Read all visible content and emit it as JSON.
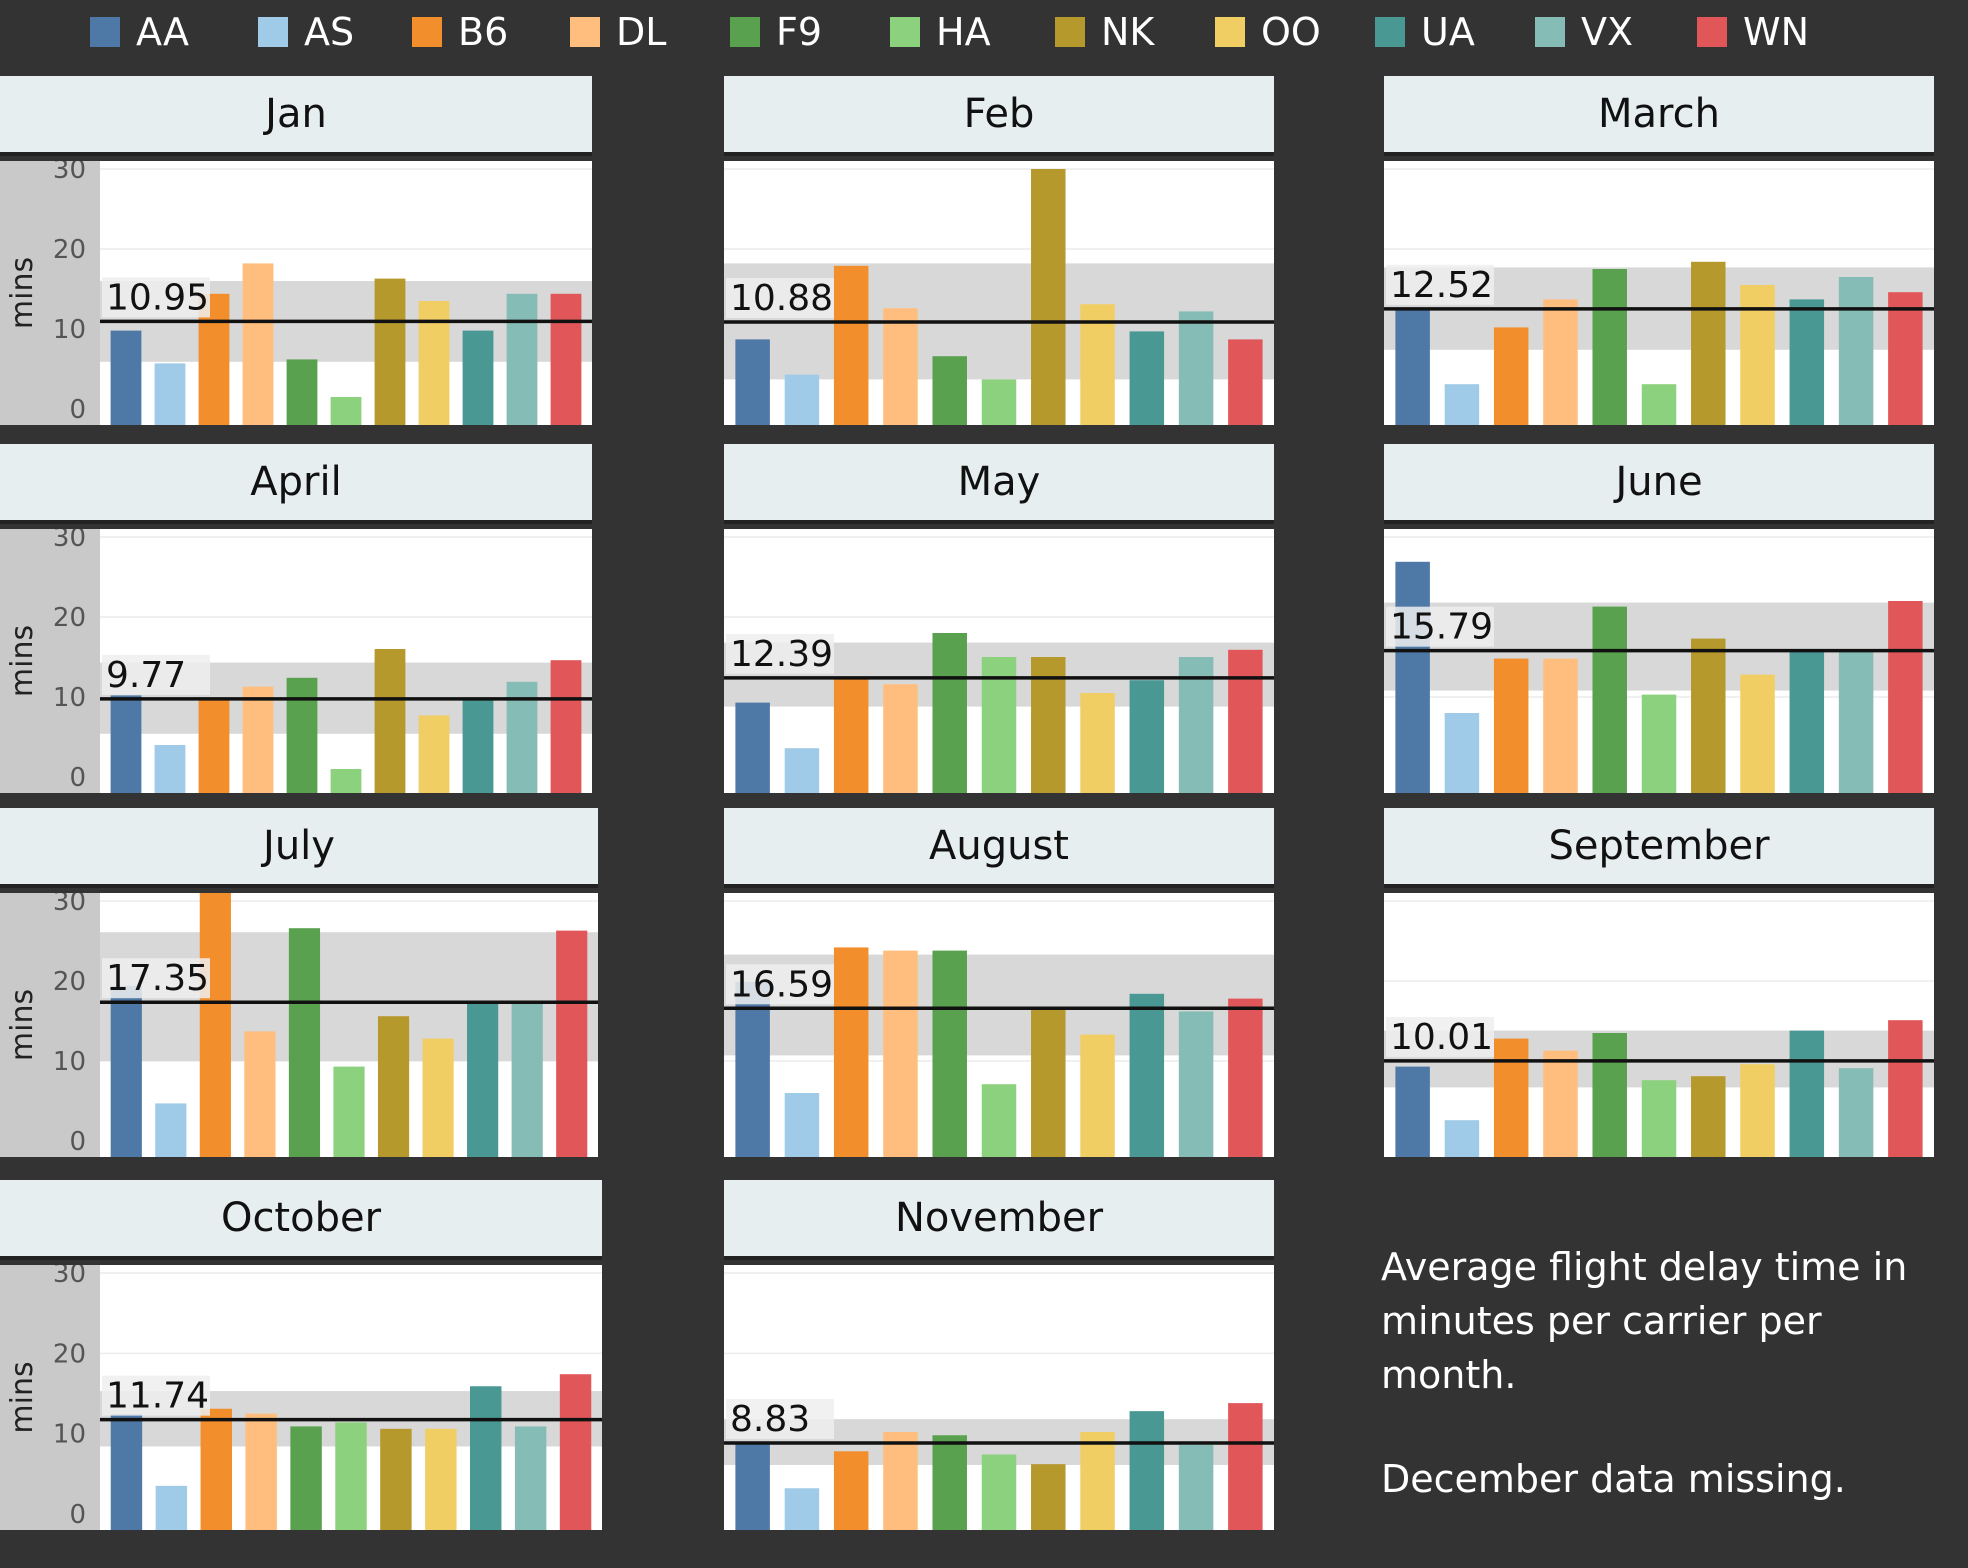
{
  "legend": [
    {
      "code": "AA",
      "color": "#4e79a7"
    },
    {
      "code": "AS",
      "color": "#a0cbe8"
    },
    {
      "code": "B6",
      "color": "#f28e2b"
    },
    {
      "code": "DL",
      "color": "#ffbe7d"
    },
    {
      "code": "F9",
      "color": "#59a14f"
    },
    {
      "code": "HA",
      "color": "#8cd17d"
    },
    {
      "code": "NK",
      "color": "#b6992d"
    },
    {
      "code": "OO",
      "color": "#f1ce63"
    },
    {
      "code": "UA",
      "color": "#499894"
    },
    {
      "code": "VX",
      "color": "#86bcb6"
    },
    {
      "code": "WN",
      "color": "#e15759"
    }
  ],
  "note": {
    "line1": "Average flight delay time in minutes per carrier per month.",
    "line2": "December data missing."
  },
  "chart_data": [
    {
      "type": "bar",
      "title": "Jan",
      "ylabel": "mins",
      "yticks": [
        0,
        10,
        20,
        30
      ],
      "ylim": [
        -2,
        31
      ],
      "categories": [
        "AA",
        "AS",
        "B6",
        "DL",
        "F9",
        "HA",
        "NK",
        "OO",
        "UA",
        "VX",
        "WN"
      ],
      "values": [
        9.8,
        5.7,
        14.4,
        18.2,
        6.2,
        1.5,
        16.3,
        13.5,
        9.8,
        14.4,
        14.4
      ],
      "average": 10.95,
      "average_label": "10.95",
      "band": [
        5.9,
        16.0
      ]
    },
    {
      "type": "bar",
      "title": "Feb",
      "ylabel": "mins",
      "yticks": [
        0,
        10,
        20,
        30
      ],
      "ylim": [
        -2,
        31
      ],
      "categories": [
        "AA",
        "AS",
        "B6",
        "DL",
        "F9",
        "HA",
        "NK",
        "OO",
        "UA",
        "VX",
        "WN"
      ],
      "values": [
        8.7,
        4.3,
        17.9,
        12.6,
        6.6,
        3.7,
        30.0,
        13.1,
        9.7,
        12.2,
        8.7
      ],
      "average": 10.88,
      "average_label": "10.88",
      "band": [
        3.7,
        18.2
      ]
    },
    {
      "type": "bar",
      "title": "March",
      "ylabel": "mins",
      "yticks": [
        0,
        10,
        20,
        30
      ],
      "ylim": [
        -2,
        31
      ],
      "categories": [
        "AA",
        "AS",
        "B6",
        "DL",
        "F9",
        "HA",
        "NK",
        "OO",
        "UA",
        "VX",
        "WN"
      ],
      "values": [
        12.5,
        3.1,
        10.2,
        13.7,
        17.5,
        3.1,
        18.4,
        15.5,
        13.7,
        16.5,
        14.6
      ],
      "average": 12.52,
      "average_label": "12.52",
      "band": [
        7.4,
        17.7
      ]
    },
    {
      "type": "bar",
      "title": "April",
      "ylabel": "mins",
      "yticks": [
        0,
        10,
        20,
        30
      ],
      "ylim": [
        -2,
        31
      ],
      "categories": [
        "AA",
        "AS",
        "B6",
        "DL",
        "F9",
        "HA",
        "NK",
        "OO",
        "UA",
        "VX",
        "WN"
      ],
      "values": [
        10.2,
        4.0,
        9.8,
        11.3,
        12.4,
        1.0,
        16.0,
        7.7,
        9.8,
        11.9,
        14.6
      ],
      "average": 9.77,
      "average_label": "9.77",
      "band": [
        5.4,
        14.3
      ]
    },
    {
      "type": "bar",
      "title": "May",
      "ylabel": "mins",
      "yticks": [
        0,
        10,
        20,
        30
      ],
      "ylim": [
        -2,
        31
      ],
      "categories": [
        "AA",
        "AS",
        "B6",
        "DL",
        "F9",
        "HA",
        "NK",
        "OO",
        "UA",
        "VX",
        "WN"
      ],
      "values": [
        9.3,
        3.6,
        12.4,
        11.6,
        18.0,
        15.0,
        15.0,
        10.5,
        12.1,
        15.0,
        15.9
      ],
      "average": 12.39,
      "average_label": "12.39",
      "band": [
        8.8,
        16.8
      ]
    },
    {
      "type": "bar",
      "title": "June",
      "ylabel": "mins",
      "yticks": [
        0,
        10,
        20,
        30
      ],
      "ylim": [
        -2,
        31
      ],
      "categories": [
        "AA",
        "AS",
        "B6",
        "DL",
        "F9",
        "HA",
        "NK",
        "OO",
        "UA",
        "VX",
        "WN"
      ],
      "values": [
        26.9,
        8.0,
        14.8,
        14.8,
        21.3,
        10.3,
        17.3,
        12.8,
        15.8,
        15.8,
        22.0
      ],
      "average": 15.79,
      "average_label": "15.79",
      "band": [
        10.8,
        21.8
      ]
    },
    {
      "type": "bar",
      "title": "July",
      "ylabel": "mins",
      "yticks": [
        0,
        10,
        20,
        30
      ],
      "ylim": [
        -2,
        31
      ],
      "categories": [
        "AA",
        "AS",
        "B6",
        "DL",
        "F9",
        "HA",
        "NK",
        "OO",
        "UA",
        "VX",
        "WN"
      ],
      "values": [
        19.4,
        4.7,
        31.0,
        13.7,
        26.6,
        9.3,
        15.6,
        12.8,
        17.2,
        17.2,
        26.3
      ],
      "average": 17.35,
      "average_label": "17.35",
      "band": [
        10.0,
        26.1
      ]
    },
    {
      "type": "bar",
      "title": "August",
      "ylabel": "mins",
      "yticks": [
        0,
        10,
        20,
        30
      ],
      "ylim": [
        -2,
        31
      ],
      "categories": [
        "AA",
        "AS",
        "B6",
        "DL",
        "F9",
        "HA",
        "NK",
        "OO",
        "UA",
        "VX",
        "WN"
      ],
      "values": [
        19.9,
        6.0,
        24.2,
        23.8,
        23.8,
        7.1,
        16.7,
        13.3,
        18.4,
        16.2,
        17.8
      ],
      "average": 16.59,
      "average_label": "16.59",
      "band": [
        10.7,
        23.3
      ]
    },
    {
      "type": "bar",
      "title": "September",
      "ylabel": "mins",
      "yticks": [
        0,
        10,
        20,
        30
      ],
      "ylim": [
        -2,
        31
      ],
      "categories": [
        "AA",
        "AS",
        "B6",
        "DL",
        "F9",
        "HA",
        "NK",
        "OO",
        "UA",
        "VX",
        "WN"
      ],
      "values": [
        9.3,
        2.6,
        12.8,
        11.3,
        13.5,
        7.6,
        8.1,
        9.6,
        13.8,
        9.1,
        15.1
      ],
      "average": 10.01,
      "average_label": "10.01",
      "band": [
        6.7,
        13.8
      ]
    },
    {
      "type": "bar",
      "title": "October",
      "ylabel": "mins",
      "yticks": [
        0,
        10,
        20,
        30
      ],
      "ylim": [
        -2,
        31
      ],
      "categories": [
        "AA",
        "AS",
        "B6",
        "DL",
        "F9",
        "HA",
        "NK",
        "OO",
        "UA",
        "VX",
        "WN"
      ],
      "values": [
        12.4,
        3.5,
        13.1,
        12.5,
        10.9,
        11.4,
        10.6,
        10.6,
        15.9,
        10.9,
        17.4
      ],
      "average": 11.74,
      "average_label": "11.74",
      "band": [
        8.4,
        15.3
      ]
    },
    {
      "type": "bar",
      "title": "November",
      "ylabel": "mins",
      "yticks": [
        0,
        10,
        20,
        30
      ],
      "ylim": [
        -2,
        31
      ],
      "categories": [
        "AA",
        "AS",
        "B6",
        "DL",
        "F9",
        "HA",
        "NK",
        "OO",
        "UA",
        "VX",
        "WN"
      ],
      "values": [
        9.0,
        3.2,
        7.8,
        10.2,
        9.8,
        7.4,
        6.2,
        10.2,
        12.8,
        8.6,
        13.8
      ],
      "average": 8.83,
      "average_label": "8.83",
      "band": [
        6.1,
        11.8
      ]
    }
  ]
}
